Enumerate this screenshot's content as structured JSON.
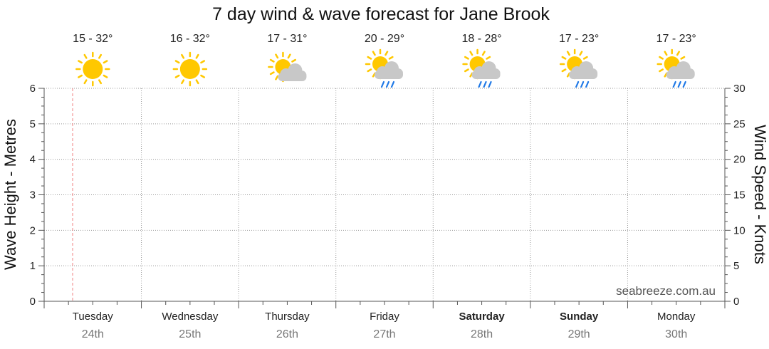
{
  "chart_data": {
    "type": "line",
    "title": "7 day wind & wave forecast for Jane Brook",
    "y_left": {
      "label": "Wave Height - Metres",
      "range": [
        0,
        6
      ],
      "ticks": [
        0,
        1,
        2,
        3,
        4,
        5,
        6
      ]
    },
    "y_right": {
      "label": "Wind Speed - Knots",
      "range": [
        0,
        30
      ],
      "ticks": [
        0,
        5,
        10,
        15,
        20,
        25,
        30
      ]
    },
    "days": [
      {
        "day": "Tuesday",
        "date": "24th",
        "temp": "15 - 32°",
        "icon": "sun-icon",
        "bold": false
      },
      {
        "day": "Wednesday",
        "date": "25th",
        "temp": "16 - 32°",
        "icon": "sun-icon",
        "bold": false
      },
      {
        "day": "Thursday",
        "date": "26th",
        "temp": "17 - 31°",
        "icon": "partly-cloudy-icon",
        "bold": false
      },
      {
        "day": "Friday",
        "date": "27th",
        "temp": "20 - 29°",
        "icon": "sun-cloud-shower-icon",
        "bold": false
      },
      {
        "day": "Saturday",
        "date": "28th",
        "temp": "18 - 28°",
        "icon": "sun-cloud-shower-icon",
        "bold": true
      },
      {
        "day": "Sunday",
        "date": "29th",
        "temp": "17 - 23°",
        "icon": "sun-cloud-shower-icon",
        "bold": true
      },
      {
        "day": "Monday",
        "date": "30th",
        "temp": "17 - 23°",
        "icon": "sun-cloud-shower-icon",
        "bold": false
      }
    ],
    "series": [],
    "grid": true,
    "credit": "seabreeze.com.au"
  },
  "colors": {
    "sun": "#FFC800",
    "sun_ray": "#FFC800",
    "cloud": "#C8C8C8",
    "rain": "#1E78E6",
    "now_line": "#F08080",
    "grid": "#999999",
    "axis": "#555555"
  }
}
